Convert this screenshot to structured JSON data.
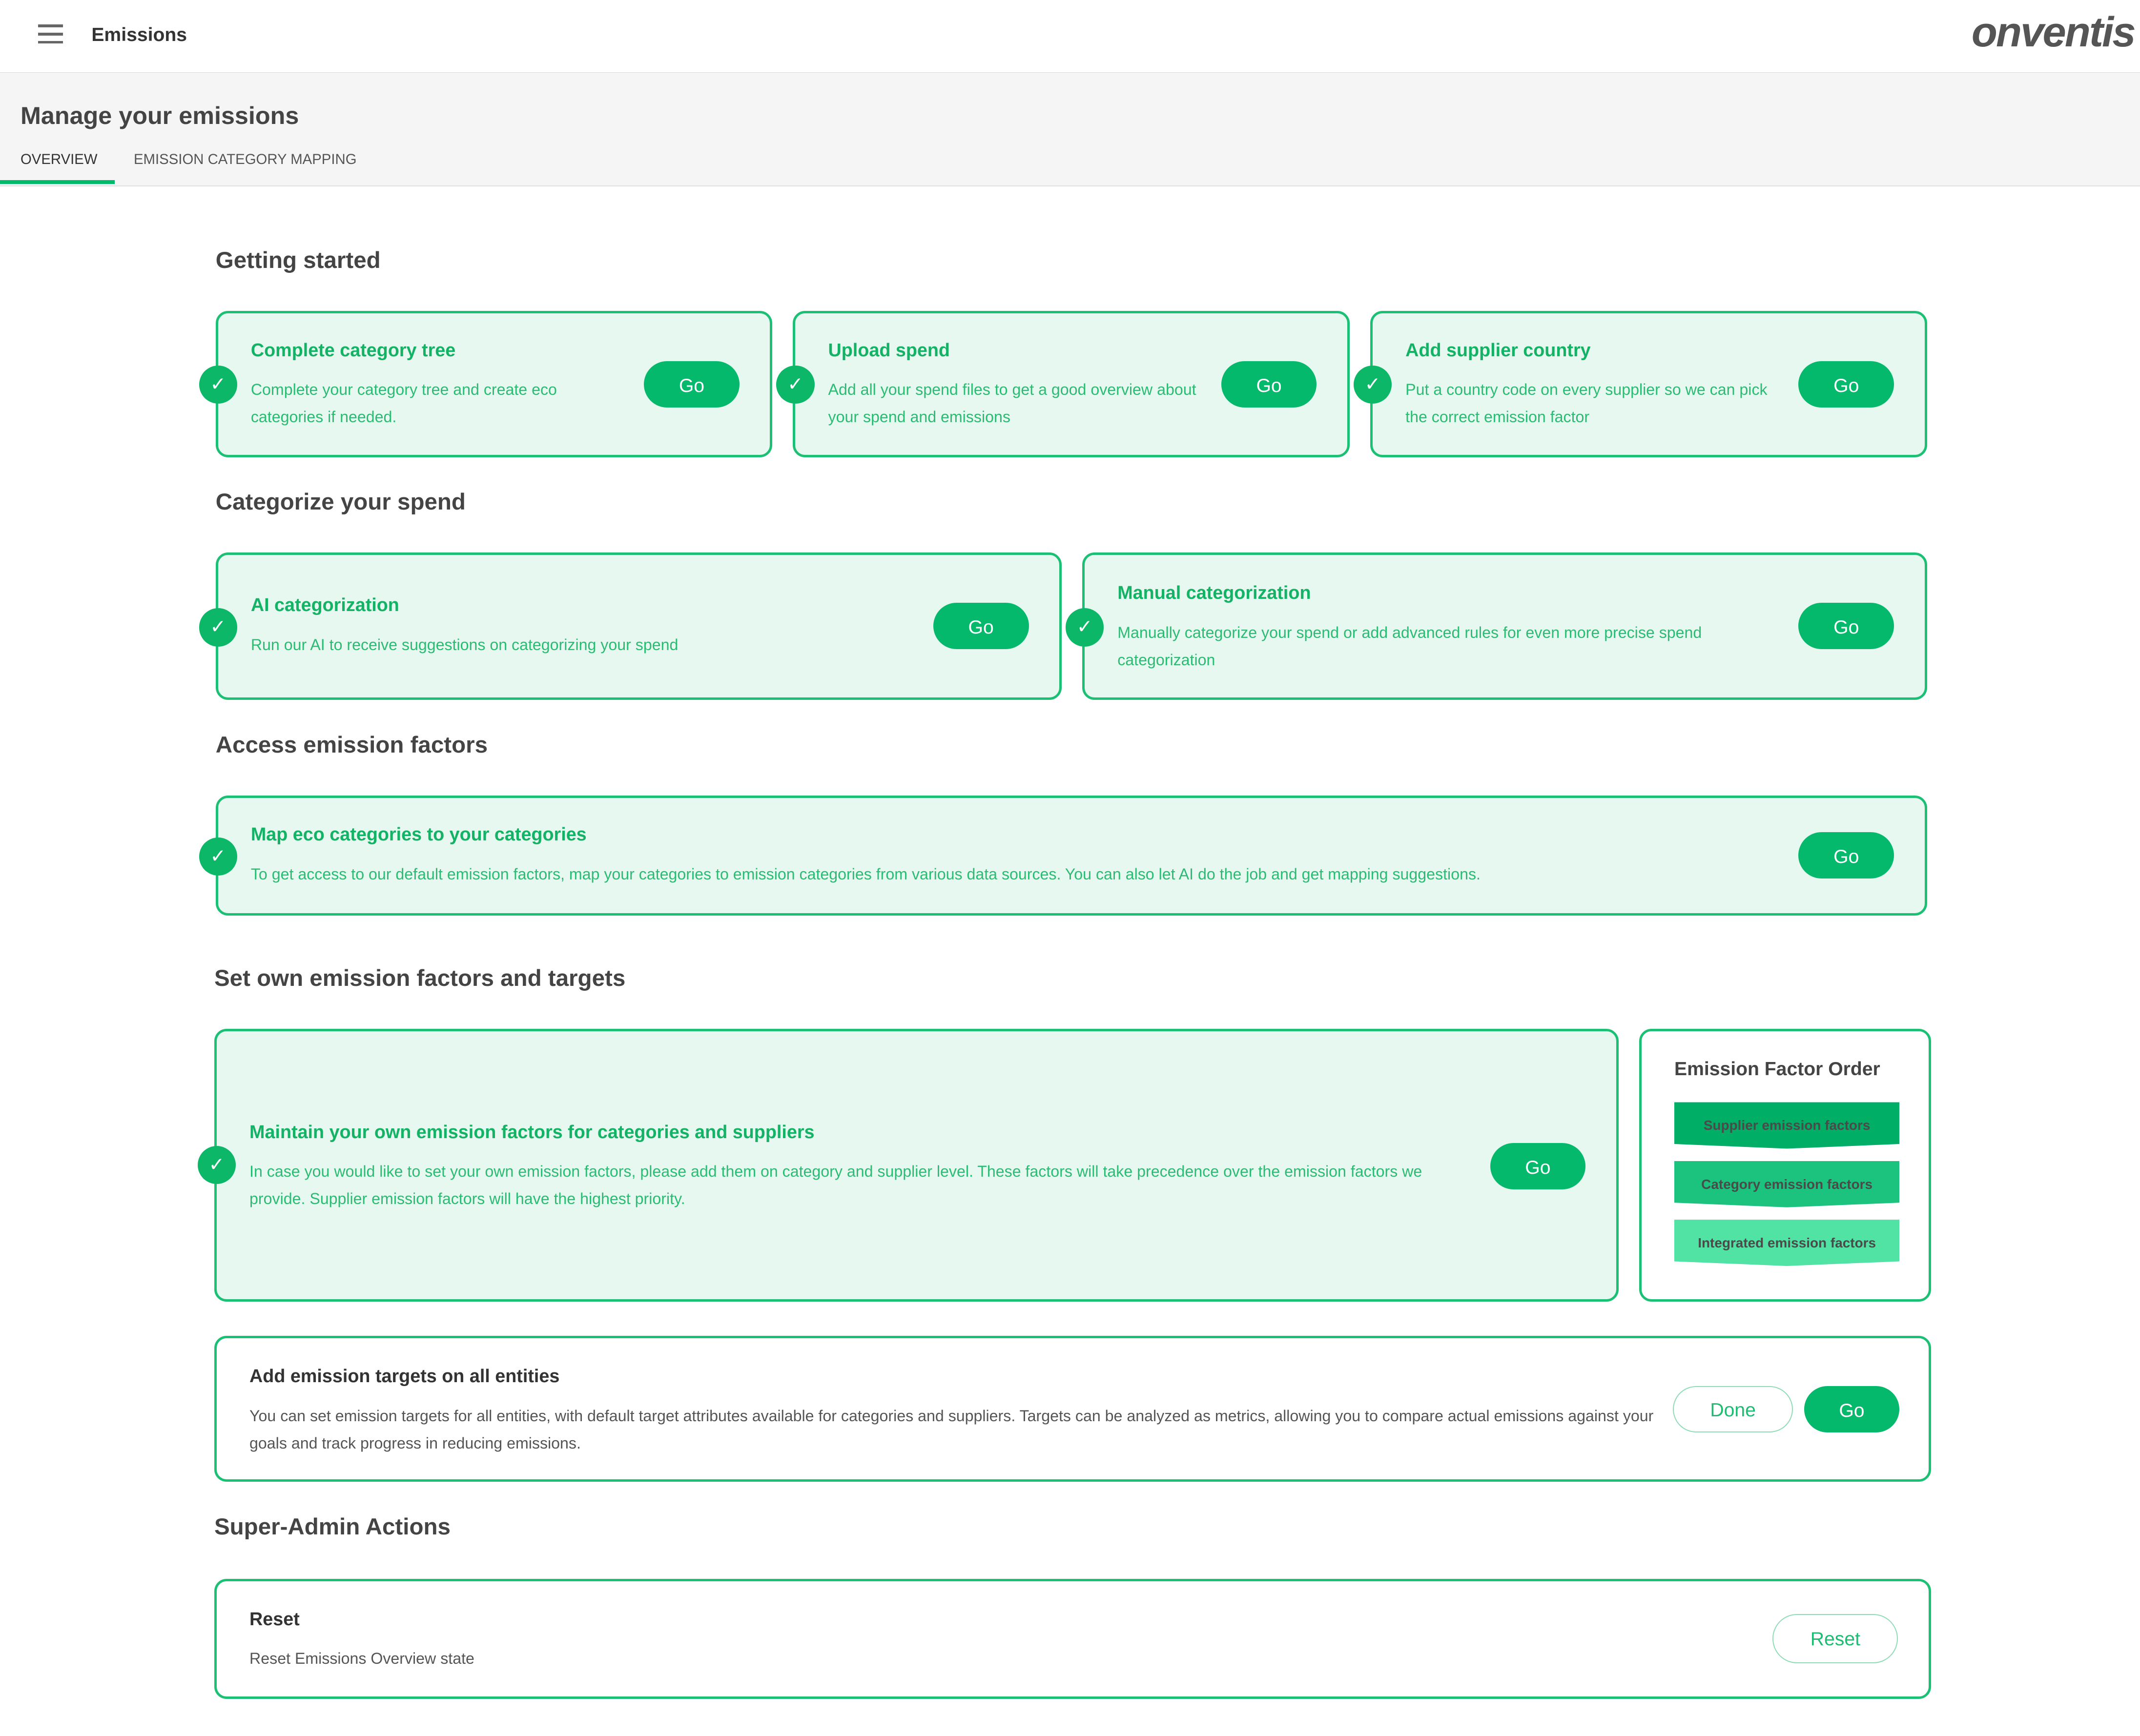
{
  "header": {
    "app_title": "Emissions",
    "logo": "onventis",
    "menu_icon": "hamburger-icon"
  },
  "page": {
    "title": "Manage your emissions",
    "tabs": [
      {
        "label": "OVERVIEW",
        "active": true
      },
      {
        "label": "EMISSION CATEGORY MAPPING",
        "active": false
      }
    ]
  },
  "colors": {
    "accent": "#04b96b",
    "card_bg": "#e6f8f0",
    "supplier": "#00ae66",
    "category": "#1cc37e",
    "integrated": "#50e3a4"
  },
  "sections": {
    "getting_started": {
      "title": "Getting started",
      "cards": [
        {
          "title": "Complete category tree",
          "desc": "Complete your category tree and create eco categories if needed.",
          "button": "Go"
        },
        {
          "title": "Upload spend",
          "desc": "Add all your spend files to get a good overview about your spend and emissions",
          "button": "Go"
        },
        {
          "title": "Add supplier country",
          "desc": "Put a country code on every supplier so we can pick the correct emission factor",
          "button": "Go"
        }
      ]
    },
    "categorize": {
      "title": "Categorize your spend",
      "cards": [
        {
          "title": "AI categorization",
          "desc": "Run our AI to receive suggestions on categorizing your spend",
          "button": "Go"
        },
        {
          "title": "Manual categorization",
          "desc": "Manually categorize your spend or add advanced rules for even more precise spend categorization",
          "button": "Go"
        }
      ]
    },
    "access": {
      "title": "Access emission factors",
      "cards": [
        {
          "title": "Map eco categories to your categories",
          "desc": "To get access to our default emission factors, map your categories to emission categories from various data sources. You can also let AI do the job and get mapping suggestions.",
          "button": "Go"
        }
      ]
    },
    "own": {
      "title": "Set own emission factors and targets",
      "card": {
        "title": "Maintain your own emission factors for categories and suppliers",
        "desc": "In case you would like to set your own emission factors, please add them on category and supplier level. These factors will take precedence over the emission factors we provide. Supplier emission factors will have the highest priority.",
        "button": "Go"
      },
      "order": {
        "title": "Emission Factor Order",
        "items": [
          "Supplier emission factors",
          "Category emission factors",
          "Integrated emission factors"
        ]
      },
      "targets": {
        "title": "Add emission targets on all entities",
        "desc": "You can set emission targets for all entities, with default target attributes available for categories and suppliers. Targets can be analyzed as metrics, allowing you to compare actual emissions against your goals and track progress in reducing emissions.",
        "done": "Done",
        "button": "Go"
      }
    },
    "admin": {
      "title": "Super-Admin Actions",
      "card": {
        "title": "Reset",
        "desc": "Reset Emissions Overview state",
        "button": "Reset"
      }
    }
  }
}
